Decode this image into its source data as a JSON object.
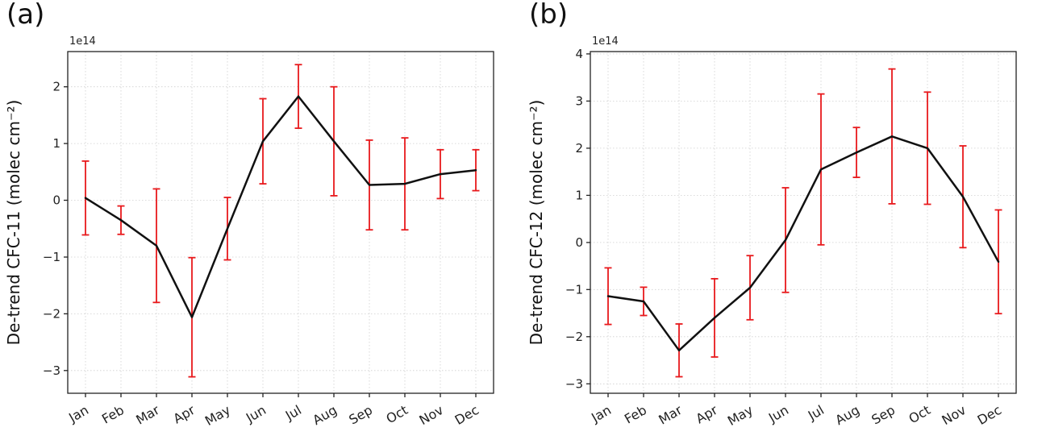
{
  "figure": {
    "background": "#ffffff",
    "line_color": "#111111",
    "error_color": "#e8191c",
    "grid_color": "#cfcfcf",
    "axis_color": "#222222"
  },
  "chart_data": [
    {
      "panel_label": "(a)",
      "type": "line",
      "title": "",
      "xlabel": "",
      "ylabel": "De-trend CFC-11 (molec cm⁻²)",
      "offset_text": "1e14",
      "units_scale": "1e14",
      "legend": "none",
      "grid": true,
      "categories": [
        "Jan",
        "Feb",
        "Mar",
        "Apr",
        "May",
        "Jun",
        "Jul",
        "Aug",
        "Sep",
        "Oct",
        "Nov",
        "Dec"
      ],
      "values": [
        0.04,
        -0.35,
        -0.8,
        -2.06,
        -0.5,
        1.04,
        1.83,
        1.04,
        0.27,
        0.29,
        0.46,
        0.53
      ],
      "errors": [
        0.65,
        0.25,
        1.0,
        1.05,
        0.55,
        0.75,
        0.56,
        0.96,
        0.79,
        0.81,
        0.43,
        0.36
      ],
      "ylim": [
        -3.4,
        2.62
      ],
      "yticks": [
        -3,
        -2,
        -1,
        0,
        1,
        2
      ]
    },
    {
      "panel_label": "(b)",
      "type": "line",
      "title": "",
      "xlabel": "",
      "ylabel": "De-trend CFC-12 (molec cm⁻²)",
      "offset_text": "1e14",
      "units_scale": "1e14",
      "legend": "none",
      "grid": true,
      "categories": [
        "Jan",
        "Feb",
        "Mar",
        "Apr",
        "May",
        "Jun",
        "Jul",
        "Aug",
        "Sep",
        "Oct",
        "Nov",
        "Dec"
      ],
      "values": [
        -1.14,
        -1.25,
        -2.29,
        -1.6,
        -0.96,
        0.05,
        1.55,
        1.91,
        2.25,
        2.0,
        0.97,
        -0.41
      ],
      "errors": [
        0.6,
        0.3,
        0.56,
        0.83,
        0.68,
        1.11,
        1.6,
        0.53,
        1.43,
        1.19,
        1.08,
        1.1
      ],
      "ylim": [
        -3.2,
        4.05
      ],
      "yticks": [
        -3,
        -2,
        -1,
        0,
        1,
        2,
        3,
        4
      ]
    }
  ]
}
